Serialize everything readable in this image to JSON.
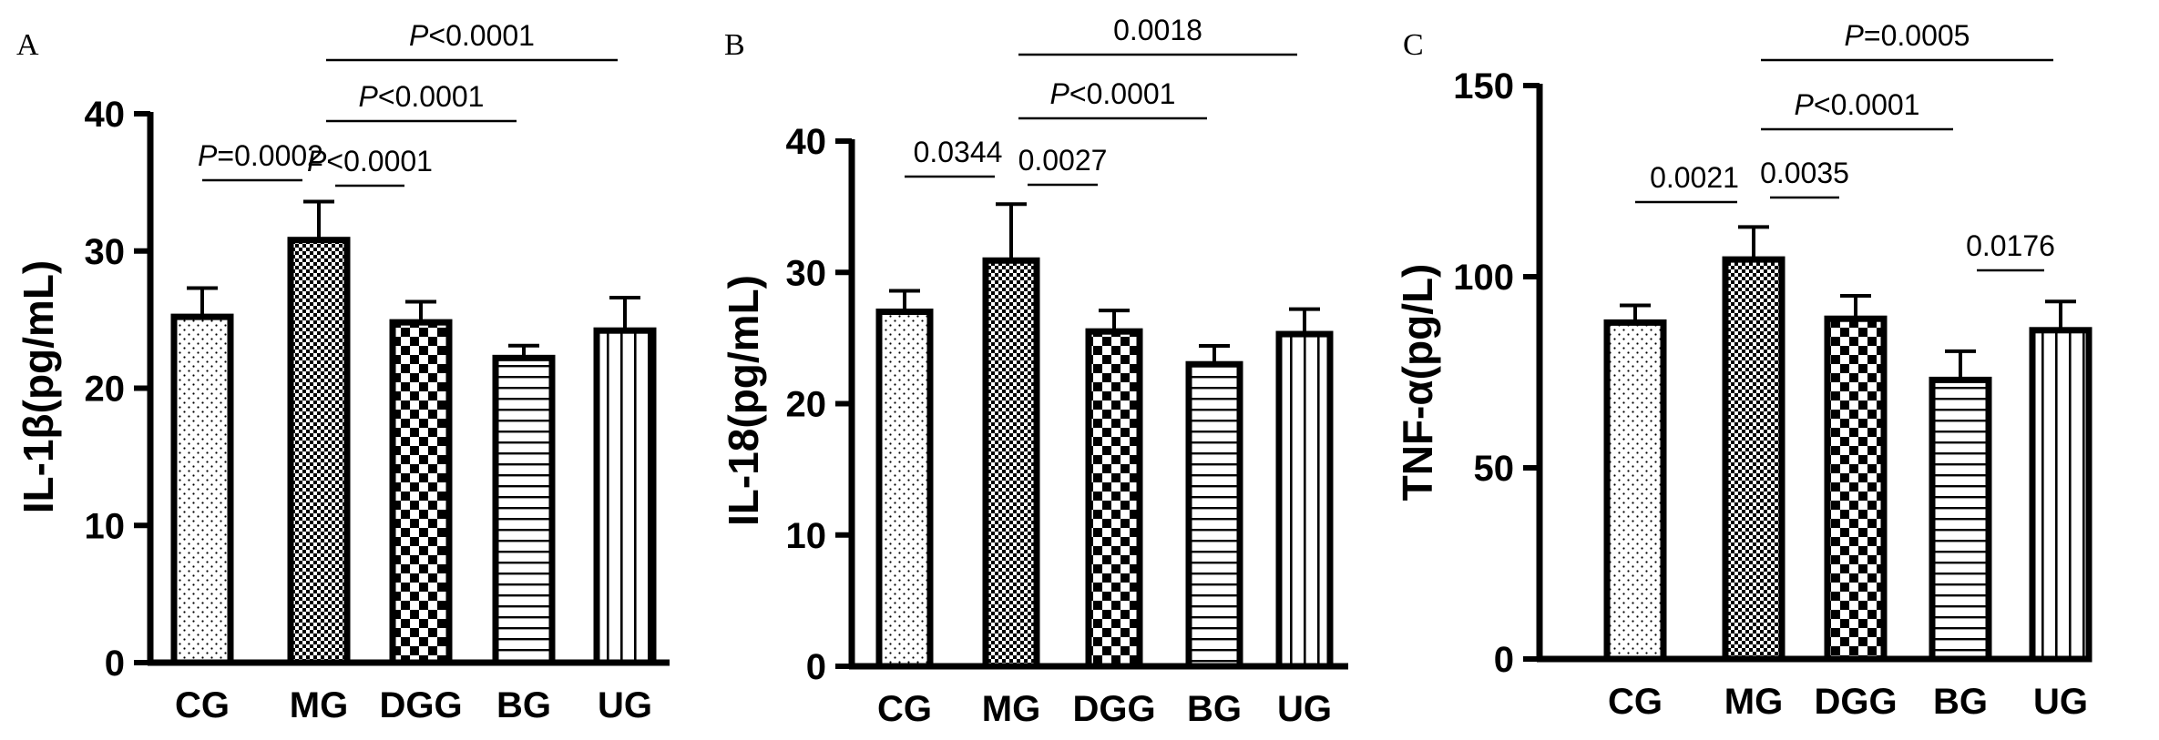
{
  "chart_data": [
    {
      "type": "bar",
      "panel": "A",
      "ylabel": "IL-1β(pg/mL)",
      "ylim": [
        0,
        40
      ],
      "yticks": [
        "0",
        "10",
        "20",
        "30",
        "40"
      ],
      "categories": [
        "CG",
        "MG",
        "DGG",
        "BG",
        "UG"
      ],
      "values": [
        25.2,
        30.8,
        24.8,
        22.2,
        24.2
      ],
      "errors": [
        2.1,
        2.8,
        1.5,
        0.9,
        2.4
      ],
      "patterns": [
        "dots",
        "fine-check",
        "coarse-check",
        "horizontal",
        "vertical"
      ],
      "comparisons": [
        {
          "from": 0,
          "to": 1,
          "prefix": "P",
          "text": "=0.0002"
        },
        {
          "from": 1,
          "to": 2,
          "prefix": "P",
          "text": "<0.0001"
        },
        {
          "from": 1,
          "to": 3,
          "prefix": "P",
          "text": "<0.0001"
        },
        {
          "from": 1,
          "to": 4,
          "prefix": "P",
          "text": "<0.0001"
        }
      ]
    },
    {
      "type": "bar",
      "panel": "B",
      "ylabel": "IL-18(pg/mL)",
      "ylim": [
        0,
        40
      ],
      "yticks": [
        "0",
        "10",
        "20",
        "30",
        "40"
      ],
      "categories": [
        "CG",
        "MG",
        "DGG",
        "BG",
        "UG"
      ],
      "values": [
        27.0,
        30.9,
        25.5,
        23.0,
        25.3
      ],
      "errors": [
        1.6,
        4.3,
        1.6,
        1.4,
        1.9
      ],
      "patterns": [
        "dots",
        "fine-check",
        "coarse-check",
        "horizontal",
        "vertical"
      ],
      "comparisons": [
        {
          "from": 0,
          "to": 1,
          "prefix": "",
          "text": "0.0344"
        },
        {
          "from": 1,
          "to": 2,
          "prefix": "",
          "text": "0.0027"
        },
        {
          "from": 1,
          "to": 3,
          "prefix": "P",
          "text": "<0.0001"
        },
        {
          "from": 1,
          "to": 4,
          "prefix": "",
          "text": "0.0018"
        }
      ]
    },
    {
      "type": "bar",
      "panel": "C",
      "ylabel": "TNF-α(pg/L)",
      "ylim": [
        0,
        150
      ],
      "yticks": [
        "0",
        "50",
        "100",
        "150"
      ],
      "categories": [
        "CG",
        "MG",
        "DGG",
        "BG",
        "UG"
      ],
      "values": [
        88,
        104.5,
        89,
        73,
        86
      ],
      "errors": [
        4.5,
        8.5,
        6,
        7.5,
        7.5
      ],
      "patterns": [
        "dots",
        "fine-check",
        "coarse-check",
        "horizontal",
        "vertical"
      ],
      "comparisons": [
        {
          "from": 0,
          "to": 1,
          "prefix": "",
          "text": "0.0021"
        },
        {
          "from": 1,
          "to": 2,
          "prefix": "",
          "text": "0.0035"
        },
        {
          "from": 3,
          "to": 4,
          "prefix": "",
          "text": "0.0176"
        },
        {
          "from": 1,
          "to": 3,
          "prefix": "P",
          "text": "<0.0001"
        },
        {
          "from": 1,
          "to": 4,
          "prefix": "P",
          "text": "=0.0005"
        }
      ]
    }
  ]
}
